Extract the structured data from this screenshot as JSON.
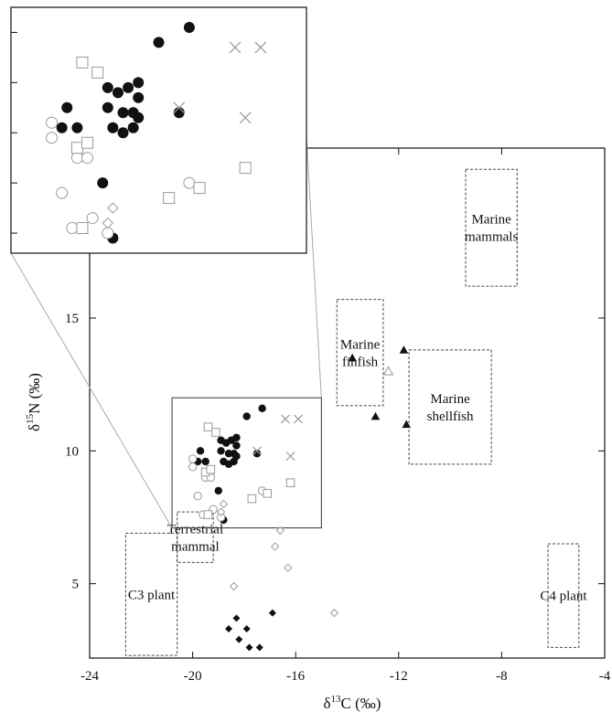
{
  "chart_data": {
    "type": "scatter",
    "xlabel_main": "δ",
    "xlabel_sup": "13",
    "xlabel_rest": "C (‰)",
    "ylabel_main": "δ",
    "ylabel_sup": "15",
    "ylabel_rest": "N (‰)",
    "xlim": [
      -24,
      -4
    ],
    "ylim": [
      2.2,
      21.4
    ],
    "xticks": [
      -24,
      -20,
      -16,
      -12,
      -8,
      -4
    ],
    "yticks": [
      5,
      10,
      15
    ],
    "xtick_labels": [
      "-24",
      "-20",
      "-16",
      "-12",
      "-8",
      "-4"
    ],
    "ytick_labels": [
      "5",
      "10",
      "15"
    ],
    "regions": [
      {
        "lines": [
          "Marine",
          "mammals"
        ],
        "x": [
          -9.4,
          -7.4
        ],
        "y": [
          16.2,
          20.6
        ]
      },
      {
        "lines": [
          "Marine",
          "finfish"
        ],
        "x": [
          -14.4,
          -12.6
        ],
        "y": [
          11.7,
          15.7
        ]
      },
      {
        "lines": [
          "Marine",
          "shellfish"
        ],
        "x": [
          -11.6,
          -8.4
        ],
        "y": [
          9.5,
          13.8
        ]
      },
      {
        "lines": [
          "Terrestrial",
          "mammal"
        ],
        "x": [
          -20.6,
          -19.2
        ],
        "y": [
          5.8,
          7.7
        ]
      },
      {
        "lines": [
          "C3 plant"
        ],
        "x": [
          -22.6,
          -20.6
        ],
        "y": [
          2.3,
          6.9
        ]
      },
      {
        "lines": [
          "C4 plant"
        ],
        "x": [
          -6.2,
          -5.0
        ],
        "y": [
          2.6,
          6.5
        ]
      }
    ],
    "zoom_box": {
      "x": [
        -20.8,
        -15.0
      ],
      "y": [
        7.1,
        12.0
      ]
    },
    "series": [
      {
        "marker": "filled-circle",
        "points": [
          [
            -19.7,
            10.0
          ],
          [
            -19.5,
            9.6
          ],
          [
            -19.8,
            9.6
          ],
          [
            -18.9,
            10.4
          ],
          [
            -18.7,
            10.3
          ],
          [
            -18.5,
            10.4
          ],
          [
            -18.3,
            10.5
          ],
          [
            -18.3,
            10.2
          ],
          [
            -18.9,
            10.0
          ],
          [
            -18.6,
            9.9
          ],
          [
            -18.4,
            9.9
          ],
          [
            -18.3,
            9.8
          ],
          [
            -18.8,
            9.6
          ],
          [
            -18.6,
            9.5
          ],
          [
            -18.4,
            9.6
          ],
          [
            -17.9,
            11.3
          ],
          [
            -17.3,
            11.6
          ],
          [
            -17.5,
            9.9
          ],
          [
            -19.0,
            8.5
          ],
          [
            -18.8,
            7.4
          ]
        ]
      },
      {
        "marker": "open-circle",
        "points": [
          [
            -20.0,
            9.7
          ],
          [
            -20.0,
            9.4
          ],
          [
            -19.5,
            9.0
          ],
          [
            -19.3,
            9.0
          ],
          [
            -18.9,
            7.5
          ],
          [
            -19.8,
            8.3
          ],
          [
            -19.6,
            7.6
          ],
          [
            -17.3,
            8.5
          ],
          [
            -19.2,
            7.8
          ]
        ]
      },
      {
        "marker": "open-square",
        "points": [
          [
            -19.4,
            10.9
          ],
          [
            -19.1,
            10.7
          ],
          [
            -19.5,
            9.2
          ],
          [
            -19.3,
            9.3
          ],
          [
            -19.4,
            7.6
          ],
          [
            -17.1,
            8.4
          ],
          [
            -16.2,
            8.8
          ],
          [
            -17.7,
            8.2
          ]
        ]
      },
      {
        "marker": "cross",
        "points": [
          [
            -16.4,
            11.2
          ],
          [
            -15.9,
            11.2
          ],
          [
            -17.5,
            10.0
          ],
          [
            -16.2,
            9.8
          ]
        ]
      },
      {
        "marker": "open-diamond",
        "points": [
          [
            -18.8,
            8.0
          ],
          [
            -18.9,
            7.7
          ],
          [
            -16.6,
            7.0
          ],
          [
            -16.8,
            6.4
          ],
          [
            -16.3,
            5.6
          ],
          [
            -18.4,
            4.9
          ],
          [
            -14.5,
            3.9
          ]
        ]
      },
      {
        "marker": "filled-diamond",
        "points": [
          [
            -18.6,
            3.3
          ],
          [
            -18.3,
            3.7
          ],
          [
            -17.9,
            3.3
          ],
          [
            -18.2,
            2.9
          ],
          [
            -17.8,
            2.6
          ],
          [
            -16.9,
            3.9
          ],
          [
            -17.4,
            2.6
          ]
        ]
      },
      {
        "marker": "filled-triangle",
        "points": [
          [
            -13.8,
            13.5
          ],
          [
            -11.8,
            13.8
          ],
          [
            -12.9,
            11.3
          ],
          [
            -11.7,
            11.0
          ]
        ]
      },
      {
        "marker": "open-triangle",
        "points": [
          [
            -12.4,
            13.0
          ]
        ]
      }
    ]
  }
}
